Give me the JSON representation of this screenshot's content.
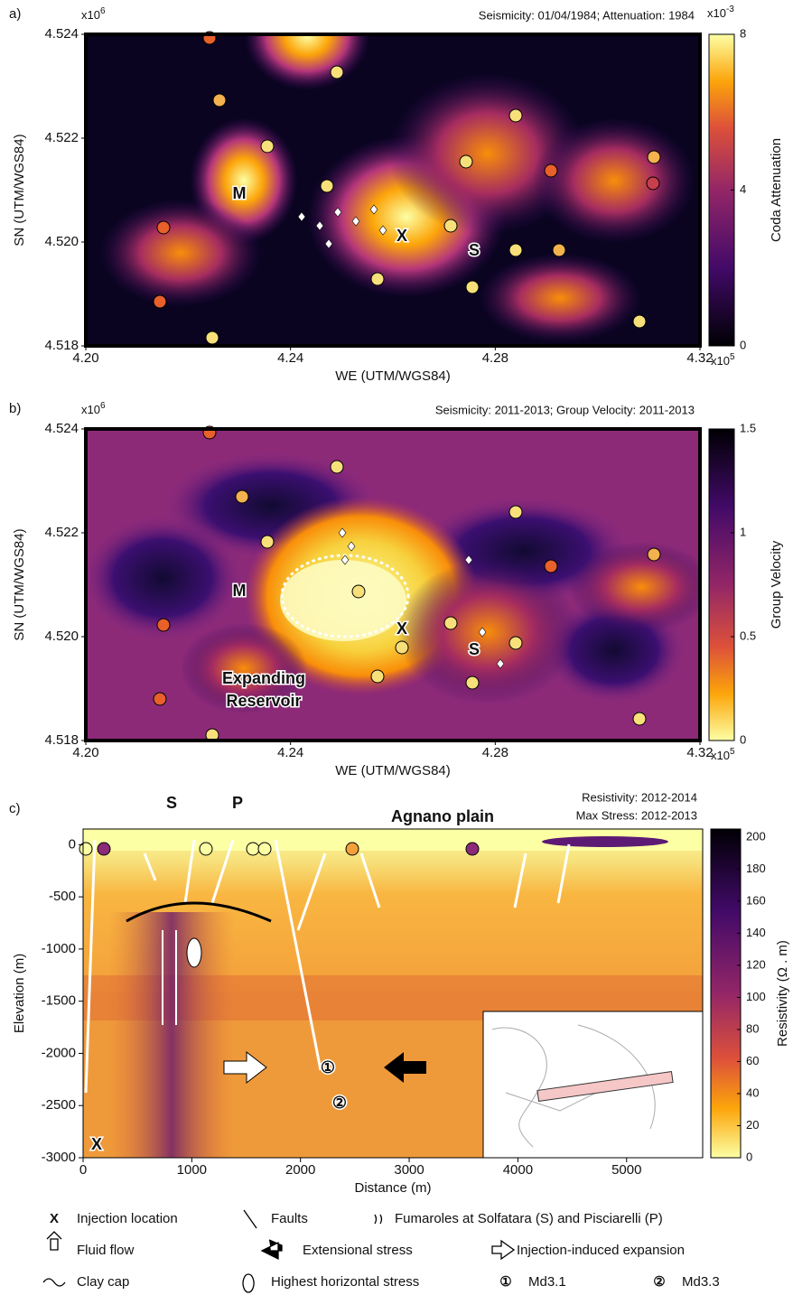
{
  "chart_data": [
    {
      "type": "heatmap",
      "panel": "a)",
      "title": "Seismicity: 01/04/1984; Attenuation: 1984",
      "xlabel": "WE (UTM/WGS84)",
      "ylabel": "SN (UTM/WGS84)",
      "xlim": [
        4.2,
        4.32
      ],
      "xticks": [
        {
          "value": 4.2,
          "label": "4.20"
        },
        4.24,
        4.28,
        4.32
      ],
      "ylim": [
        4.518,
        4.524
      ],
      "yticks": [
        4.518,
        {
          "value": 4.52,
          "label": "4.520"
        },
        4.522,
        4.524
      ],
      "xexp": {
        "base": "x10",
        "exp": "5"
      },
      "yexp": {
        "base": "x10",
        "exp": "6"
      },
      "colorbar": {
        "label": "Coda Attenuation",
        "lim": [
          0,
          8
        ],
        "ticks": [
          0,
          4,
          8
        ],
        "exp": {
          "base": "x10",
          "exp": "-3"
        }
      },
      "labels": [
        "M",
        "X",
        "S"
      ]
    },
    {
      "type": "heatmap",
      "panel": "b)",
      "title": "Seismicity: 2011-2013; Group Velocity: 2011-2013",
      "xlabel": "WE (UTM/WGS84)",
      "ylabel": "SN (UTM/WGS84)",
      "xlim": [
        4.2,
        4.32
      ],
      "xticks": [
        {
          "value": 4.2,
          "label": "4.20"
        },
        4.24,
        4.28,
        4.32
      ],
      "ylim": [
        4.518,
        4.524
      ],
      "yticks": [
        4.518,
        {
          "value": 4.52,
          "label": "4.520"
        },
        4.522,
        4.524
      ],
      "xexp": {
        "base": "x10",
        "exp": "5"
      },
      "yexp": {
        "base": "x10",
        "exp": "6"
      },
      "colorbar": {
        "label": "Group Velocity",
        "lim": [
          0,
          1.5
        ],
        "ticks": [
          0,
          0.5,
          1,
          1.5
        ]
      },
      "labels": [
        "M",
        "X",
        "S",
        "Expanding",
        "Reservoir"
      ]
    },
    {
      "type": "section",
      "panel": "c)",
      "title": "Resistivity: 2012-2014",
      "subtitle": "Max Stress: 2012-2013",
      "xlabel": "Distance (m)",
      "ylabel": "Elevation (m)",
      "xlim": [
        0,
        5700
      ],
      "xticks": [
        0,
        1000,
        2000,
        3000,
        4000,
        5000
      ],
      "ylim": [
        -3000,
        150
      ],
      "yticks": [
        -3000,
        -2500,
        -2000,
        -1500,
        -1000,
        -500,
        0
      ],
      "colorbar": {
        "label": "Resistivity (Ω . m)",
        "lim": [
          0,
          205
        ],
        "ticks": [
          0,
          20,
          40,
          60,
          80,
          100,
          120,
          140,
          160,
          180,
          200
        ]
      },
      "labels": [
        "S",
        "P",
        "Agnano plain",
        "X",
        "①",
        "②"
      ]
    }
  ],
  "legend": [
    {
      "icon": "X",
      "text": "Injection location"
    },
    {
      "icon": "",
      "text": "Faults"
    },
    {
      "icon": "",
      "text": "Fumaroles at Solfatara (S) and Pisciarelli (P)"
    },
    {
      "icon": "",
      "text": "Fluid flow"
    },
    {
      "icon": "",
      "text": "Extensional stress"
    },
    {
      "icon": "",
      "text": "Injection-induced expansion"
    },
    {
      "icon": "",
      "text": "Clay cap"
    },
    {
      "icon": "",
      "text": "Highest horizontal stress"
    },
    {
      "icon": "①",
      "text": "Md3.1"
    },
    {
      "icon": "②",
      "text": "Md3.3"
    }
  ]
}
